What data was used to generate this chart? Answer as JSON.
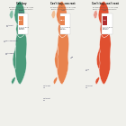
{
  "title1": "Can buy",
  "title2": "Can’t buy, can rent",
  "title3": "Can’t buy, can’t rent",
  "subtitle1": "Mortgage less than 4.5 annual income\nMonthly rent less than 30% monthly\nincome",
  "subtitle2": "Mortgage more than 4.5 annual income\nMonthly rent less than 30% monthly\nincome",
  "subtitle3": "Mortgage more than 4.5 annual income\nMonthly rent more than 30% monthly\nincome",
  "legend1_text": "% of LAs where\nmortgage\naffordable",
  "legend2_text": "% of LAs where\nrent is\naffordable",
  "legend3_text": "% of LAs where\nneither is\naffordable",
  "legend1_color": "#e8834e",
  "legend2_color": "#e8834e",
  "legend3_color": "#b03030",
  "legend1_pct": "45%",
  "legend2_pct": "46%",
  "legend3_pct": "9%",
  "bg_color": "#f0f0eb",
  "map1_main_color": "#4a9a7a",
  "map1_bg_color": "#c8ddd6",
  "map2_main_color": "#e8834e",
  "map2_bg_color": "#f0e0d0",
  "map3_main_color": "#e05030",
  "map3_bg_color": "#e8d8d0",
  "title_color": "#1a1a1a",
  "subtitle_color": "#555555",
  "ann_color": "#333355",
  "legend_box_color1": "#e8834e",
  "legend_box_color2": "#e8834e",
  "legend_box_color3": "#b03030",
  "panel_bg": "#ffffff"
}
